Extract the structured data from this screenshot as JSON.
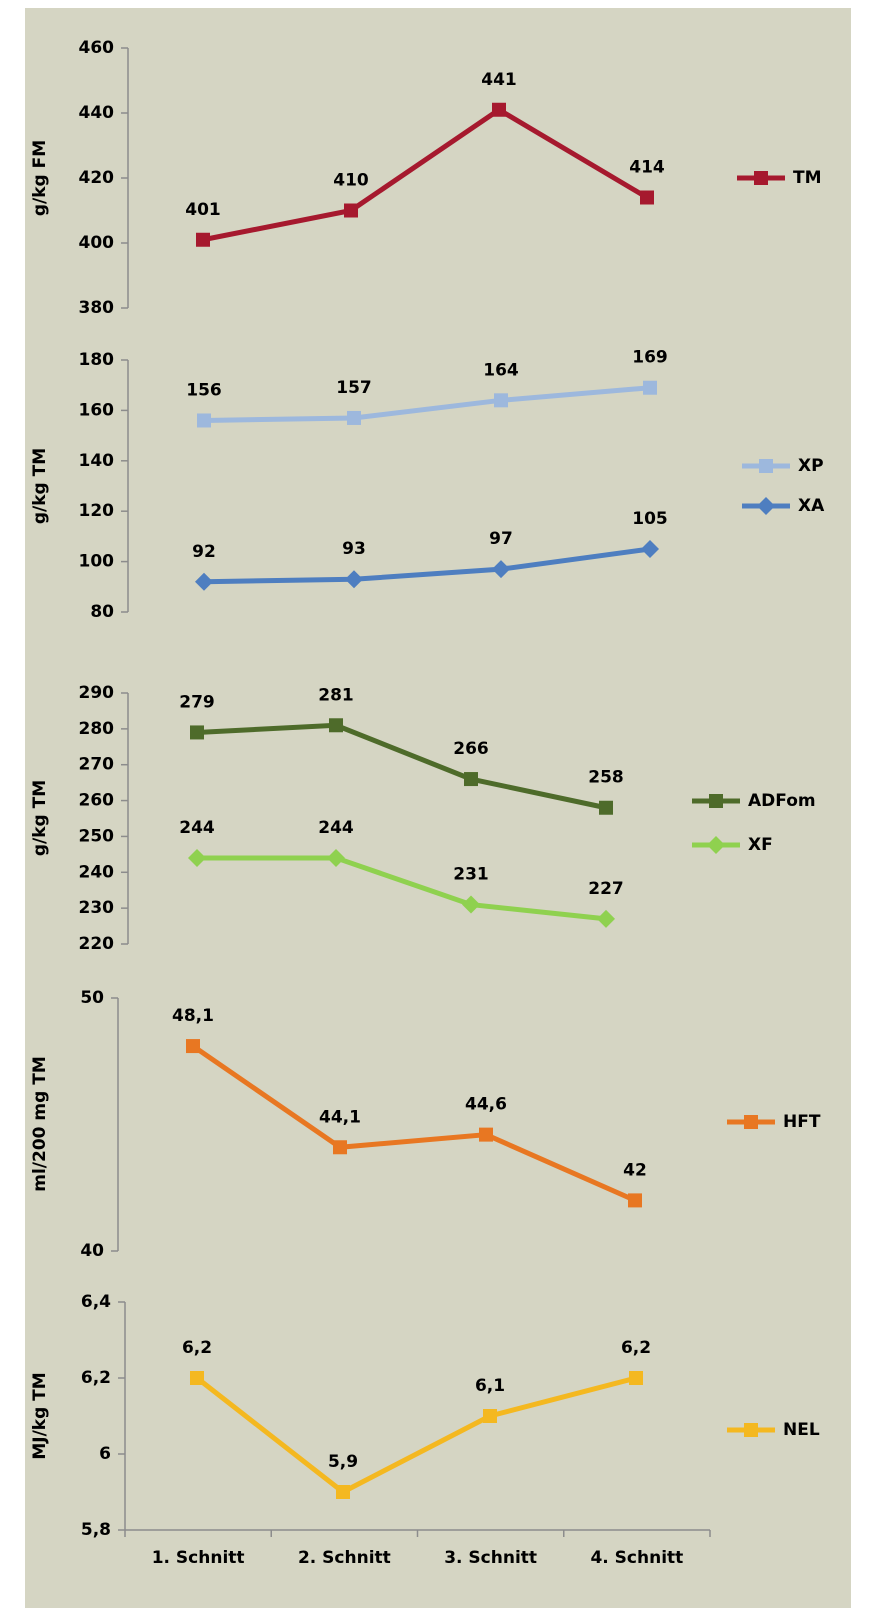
{
  "chart_data": [
    {
      "type": "line",
      "ylabel": "g/kg FM",
      "ylim": [
        380,
        460
      ],
      "yticks": [
        380,
        400,
        420,
        440,
        460
      ],
      "series": [
        {
          "name": "TM",
          "color": "#a6192e",
          "marker": "square",
          "values": [
            401,
            410,
            441,
            414
          ]
        }
      ]
    },
    {
      "type": "line",
      "ylabel": "g/kg TM",
      "ylim": [
        80,
        180
      ],
      "yticks": [
        80,
        100,
        120,
        140,
        160,
        180
      ],
      "series": [
        {
          "name": "XP",
          "color": "#9db8dd",
          "marker": "square",
          "values": [
            156,
            157,
            164,
            169
          ]
        },
        {
          "name": "XA",
          "color": "#4e7ec0",
          "marker": "diamond",
          "values": [
            92,
            93,
            97,
            105
          ]
        }
      ]
    },
    {
      "type": "line",
      "ylabel": "g/kg TM",
      "ylim": [
        220,
        290
      ],
      "yticks": [
        220,
        230,
        240,
        250,
        260,
        270,
        280,
        290
      ],
      "series": [
        {
          "name": "ADFom",
          "color": "#4e6b2a",
          "marker": "square",
          "values": [
            279,
            281,
            266,
            258
          ]
        },
        {
          "name": "XF",
          "color": "#8fd14f",
          "marker": "diamond",
          "values": [
            244,
            244,
            231,
            227
          ]
        }
      ]
    },
    {
      "type": "line",
      "ylabel": "ml/200 mg TM",
      "ylim": [
        40,
        50
      ],
      "yticks": [
        40,
        50
      ],
      "series": [
        {
          "name": "HFT",
          "color": "#e87722",
          "marker": "square",
          "values": [
            48.1,
            44.1,
            44.6,
            42
          ],
          "value_labels": [
            "48,1",
            "44,1",
            "44,6",
            "42"
          ]
        }
      ]
    },
    {
      "type": "line",
      "ylabel": "MJ/kg TM",
      "ylim": [
        5.8,
        6.4
      ],
      "yticks": [
        {
          "value": 5.8,
          "label": "5,8"
        },
        6,
        {
          "value": 6.2,
          "label": "6,2"
        },
        {
          "value": 6.4,
          "label": "6,4"
        }
      ],
      "categories": [
        "1. Schnitt",
        "2. Schnitt",
        "3. Schnitt",
        "4. Schnitt"
      ],
      "series": [
        {
          "name": "NEL",
          "color": "#f4b820",
          "marker": "square",
          "values": [
            6.2,
            5.9,
            6.1,
            6.2
          ],
          "value_labels": [
            "6,2",
            "5,9",
            "6,1",
            "6,2"
          ]
        }
      ]
    }
  ]
}
